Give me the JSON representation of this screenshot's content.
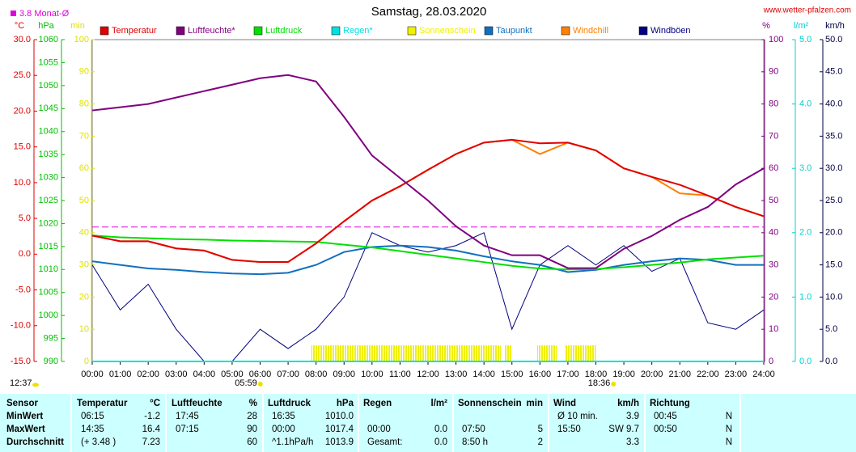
{
  "chart_data": {
    "type": "line",
    "title": "Samstag, 28.03.2020",
    "source": "www.wetter-pfalzen.com",
    "monthly_avg": {
      "label": "3.8 Monat-Ø",
      "value": 3.8,
      "color": "#e000e0"
    },
    "axes": {
      "temp": {
        "unit": "°C",
        "color": "#e00000",
        "lim": [
          -15,
          30
        ],
        "ticks": [
          {
            "value": -15,
            "label": "-15.0"
          },
          {
            "value": -10,
            "label": "-10.0"
          },
          {
            "value": -5,
            "label": "-5.0"
          },
          {
            "value": 0,
            "label": "0.0"
          },
          {
            "value": 5,
            "label": "5.0"
          },
          {
            "value": 10,
            "label": "10.0"
          },
          {
            "value": 15,
            "label": "15.0"
          },
          {
            "value": 20,
            "label": "20.0"
          },
          {
            "value": 25,
            "label": "25.0"
          },
          {
            "value": 30,
            "label": "30.0"
          }
        ]
      },
      "press": {
        "unit": "hPa",
        "color": "#00c000",
        "lim": [
          990,
          1060
        ],
        "ticks": [
          990,
          995,
          1000,
          1005,
          1010,
          1015,
          1020,
          1025,
          1030,
          1035,
          1040,
          1045,
          1050,
          1055,
          1060
        ]
      },
      "sun": {
        "unit": "min",
        "color": "#e0e000",
        "lim": [
          0,
          100
        ],
        "ticks": [
          0,
          10,
          20,
          30,
          40,
          50,
          60,
          70,
          80,
          90,
          100
        ]
      },
      "hum": {
        "unit": "%",
        "color": "#800080",
        "lim": [
          0,
          100
        ],
        "ticks": [
          0,
          10,
          20,
          30,
          40,
          50,
          60,
          70,
          80,
          90,
          100
        ]
      },
      "rain": {
        "unit": "l/m²",
        "color": "#00d0d0",
        "lim": [
          0,
          5
        ],
        "ticks": [
          {
            "value": 0,
            "label": "0.0"
          },
          {
            "value": 1,
            "label": "1.0"
          },
          {
            "value": 2,
            "label": "2.0"
          },
          {
            "value": 3,
            "label": "3.0"
          },
          {
            "value": 4,
            "label": "4.0"
          },
          {
            "value": 5,
            "label": "5.0"
          }
        ]
      },
      "wind": {
        "unit": "km/h",
        "color": "#000040",
        "lim": [
          0,
          50
        ],
        "ticks": [
          {
            "value": 0,
            "label": "0.0"
          },
          {
            "value": 5,
            "label": "5.0"
          },
          {
            "value": 10,
            "label": "10.0"
          },
          {
            "value": 15,
            "label": "15.0"
          },
          {
            "value": 20,
            "label": "20.0"
          },
          {
            "value": 25,
            "label": "25.0"
          },
          {
            "value": 30,
            "label": "30.0"
          },
          {
            "value": 35,
            "label": "35.0"
          },
          {
            "value": 40,
            "label": "40.0"
          },
          {
            "value": 45,
            "label": "45.0"
          },
          {
            "value": 50,
            "label": "50.0"
          }
        ]
      }
    },
    "xlim": [
      0,
      24
    ],
    "xticks": [
      {
        "value": 0,
        "label": "00:00"
      },
      {
        "value": 1,
        "label": "01:00"
      },
      {
        "value": 2,
        "label": "02:00"
      },
      {
        "value": 3,
        "label": "03:00"
      },
      {
        "value": 4,
        "label": "04:00"
      },
      {
        "value": 5,
        "label": "05:00"
      },
      {
        "value": 6,
        "label": "06:00"
      },
      {
        "value": 7,
        "label": "07:00"
      },
      {
        "value": 8,
        "label": "08:00"
      },
      {
        "value": 9,
        "label": "09:00"
      },
      {
        "value": 10,
        "label": "10:00"
      },
      {
        "value": 11,
        "label": "11:00"
      },
      {
        "value": 12,
        "label": "12:00"
      },
      {
        "value": 13,
        "label": "13:00"
      },
      {
        "value": 14,
        "label": "14:00"
      },
      {
        "value": 15,
        "label": "15:00"
      },
      {
        "value": 16,
        "label": "16:00"
      },
      {
        "value": 17,
        "label": "17:00"
      },
      {
        "value": 18,
        "label": "18:00"
      },
      {
        "value": 19,
        "label": "19:00"
      },
      {
        "value": 20,
        "label": "20:00"
      },
      {
        "value": 21,
        "label": "21:00"
      },
      {
        "value": 22,
        "label": "22:00"
      },
      {
        "value": 23,
        "label": "23:00"
      },
      {
        "value": 24,
        "label": "24:00"
      }
    ],
    "annotations": {
      "sunrise": {
        "label": "05:59",
        "value": 5.98
      },
      "sunset": {
        "label": "18:36",
        "value": 18.6
      },
      "daylength": "12:37"
    },
    "x": [
      0,
      1,
      2,
      3,
      4,
      5,
      6,
      7,
      8,
      9,
      10,
      11,
      12,
      13,
      14,
      15,
      16,
      17,
      18,
      19,
      20,
      21,
      22,
      23,
      24
    ],
    "series": [
      {
        "name": "Temperatur",
        "color": "#e00000",
        "axis": "temp",
        "values": [
          2.6,
          1.8,
          1.8,
          0.8,
          0.5,
          -0.8,
          -1.1,
          -1.1,
          1.5,
          4.6,
          7.5,
          9.5,
          11.8,
          14.0,
          15.6,
          16.0,
          15.5,
          15.6,
          14.5,
          12.0,
          10.8,
          9.7,
          8.2,
          6.6,
          5.3
        ]
      },
      {
        "name": "Luftfeuchte*",
        "color": "#800080",
        "axis": "hum",
        "values": [
          78,
          79,
          80,
          82,
          84,
          86,
          88,
          89,
          87,
          76,
          64,
          57,
          50,
          42,
          36,
          33,
          33,
          29,
          29,
          35,
          39,
          44,
          48,
          55,
          60
        ]
      },
      {
        "name": "Luftdruck",
        "color": "#00e000",
        "axis": "press",
        "values": [
          1017.4,
          1017.0,
          1016.8,
          1016.6,
          1016.5,
          1016.3,
          1016.2,
          1016.1,
          1016.0,
          1015.4,
          1014.8,
          1014.0,
          1013.2,
          1012.4,
          1011.6,
          1010.8,
          1010.2,
          1010.0,
          1010.1,
          1010.5,
          1011.0,
          1011.5,
          1012.2,
          1012.6,
          1013.0
        ]
      },
      {
        "name": "Regen*",
        "color": "#00e0e0",
        "axis": "rain",
        "values": [
          0,
          0,
          0,
          0,
          0,
          0,
          0,
          0,
          0,
          0,
          0,
          0,
          0,
          0,
          0,
          0,
          0,
          0,
          0,
          0,
          0,
          0,
          0,
          0,
          0
        ]
      },
      {
        "name": "Taupunkt",
        "color": "#1070c0",
        "axis": "temp",
        "values": [
          -1.0,
          -1.5,
          -2.0,
          -2.2,
          -2.5,
          -2.7,
          -2.8,
          -2.6,
          -1.5,
          0.3,
          1.0,
          1.2,
          1.0,
          0.5,
          -0.3,
          -1.0,
          -1.5,
          -2.5,
          -2.2,
          -1.5,
          -1.0,
          -0.6,
          -0.8,
          -1.5,
          -1.5
        ]
      },
      {
        "name": "Windchill",
        "color": "#ff8000",
        "axis": "temp",
        "values": [
          2.6,
          1.8,
          1.8,
          0.8,
          0.5,
          -0.8,
          -1.1,
          -1.1,
          1.5,
          4.6,
          7.5,
          9.5,
          11.8,
          14.0,
          15.6,
          16.0,
          14.0,
          15.6,
          14.5,
          12.0,
          10.8,
          8.5,
          8.2,
          6.6,
          5.3
        ]
      },
      {
        "name": "Windböen",
        "color": "#000080",
        "axis": "wind",
        "values": [
          15,
          8,
          12,
          5,
          0,
          0,
          5,
          2,
          5,
          10,
          20,
          18,
          17,
          18,
          20,
          5,
          15,
          18,
          15,
          18,
          14,
          16,
          6,
          5,
          8
        ]
      }
    ],
    "sunshine": {
      "name": "Sonnenschein",
      "color": "#f0f000",
      "axis": "sun",
      "starts": [
        7.83,
        14.75,
        15.9,
        16.9
      ],
      "ends": [
        14.6,
        15.0,
        16.6,
        18.0
      ],
      "values": [
        5,
        5,
        5,
        5
      ]
    },
    "legend_order": [
      0,
      1,
      2,
      3,
      "sun",
      4,
      5,
      6
    ]
  },
  "table": {
    "headers": [
      [
        "Sensor"
      ],
      [
        "Temperatur",
        "°C"
      ],
      [
        "Luftfeuchte",
        "%"
      ],
      [
        "Luftdruck",
        "hPa"
      ],
      [
        "Regen",
        "l/m²"
      ],
      [
        "Sonnenschein",
        "min"
      ],
      [
        "Wind",
        "km/h"
      ],
      [
        "Richtung"
      ]
    ],
    "rows": [
      {
        "label": "MinWert",
        "cells": [
          "06:15",
          "-1.2",
          "17:45",
          "28",
          "16:35",
          "1010.0",
          null,
          null,
          null,
          null,
          "Ø 10 min.",
          "3.9",
          "00:45",
          "N"
        ]
      },
      {
        "label": "MaxWert",
        "cells": [
          "14:35",
          "16.4",
          "07:15",
          "90",
          "00:00",
          "1017.4",
          "00:00",
          "0.0",
          "07:50",
          "5",
          "15:50",
          "SW 9.7",
          "00:50",
          "N"
        ]
      },
      {
        "label": "Durchschnitt",
        "cells": [
          "(+ 3.48 )",
          "7.23",
          null,
          "60",
          "^1.1hPa/h",
          "1013.9",
          "Gesamt:",
          "0.0",
          "8:50 h",
          "2",
          null,
          "3.3",
          null,
          "N"
        ]
      }
    ]
  }
}
